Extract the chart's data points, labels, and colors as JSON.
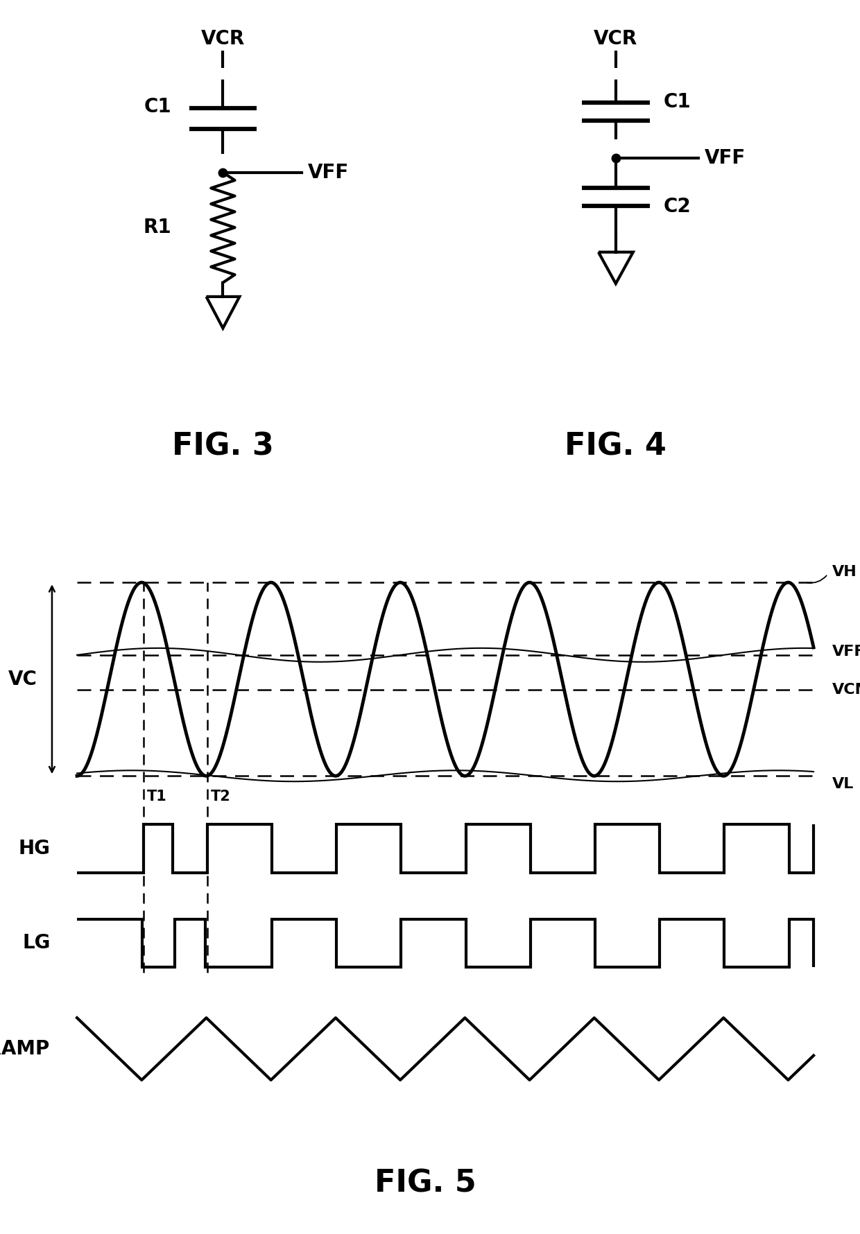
{
  "bg_color": "#ffffff",
  "line_color": "#000000",
  "fig3_title": "FIG. 3",
  "fig4_title": "FIG. 4",
  "fig5_title": "FIG. 5",
  "labels": {
    "VCR": "VCR",
    "C1": "C1",
    "VFF": "VFF",
    "R1": "R1",
    "C2": "C2",
    "VH": "VH",
    "VCMR": "VCMR",
    "VL": "VL",
    "VC": "VC",
    "HG": "HG",
    "LG": "LG",
    "VRAMP": "VRAMP",
    "T1": "T1",
    "T2": "T2"
  },
  "font_size_label": 20,
  "font_size_fig": 32,
  "font_size_small": 16
}
